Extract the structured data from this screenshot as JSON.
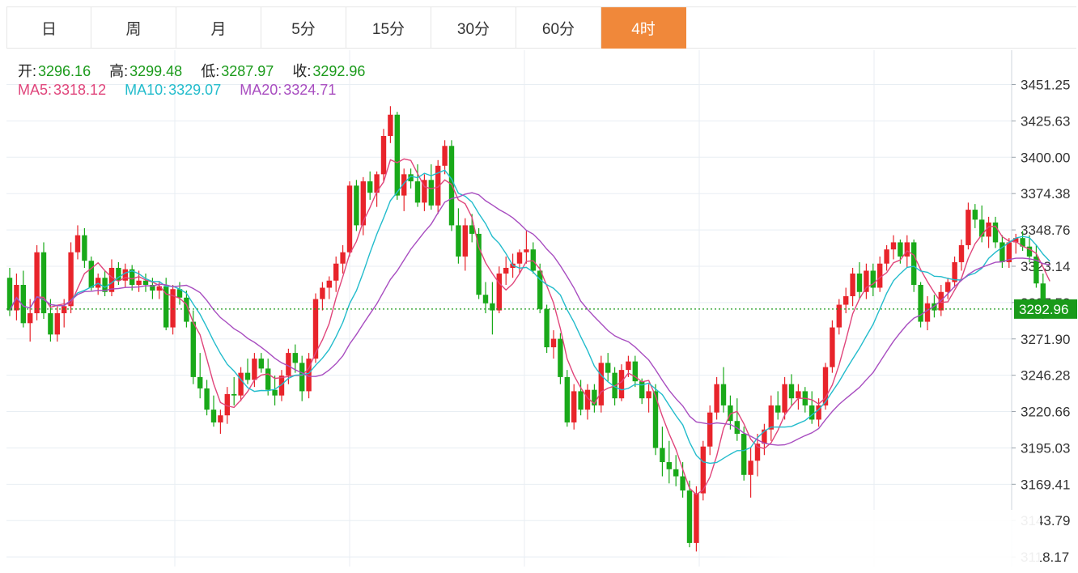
{
  "tabs": [
    {
      "label": "日",
      "active": false
    },
    {
      "label": "周",
      "active": false
    },
    {
      "label": "月",
      "active": false
    },
    {
      "label": "5分",
      "active": false
    },
    {
      "label": "15分",
      "active": false
    },
    {
      "label": "30分",
      "active": false
    },
    {
      "label": "60分",
      "active": false
    },
    {
      "label": "4时",
      "active": true
    }
  ],
  "ohlc": {
    "open_label": "开:",
    "open": "3296.16",
    "high_label": "高:",
    "high": "3299.48",
    "low_label": "低:",
    "low": "3287.97",
    "close_label": "收:",
    "close": "3292.96"
  },
  "ma": {
    "ma5_label": "MA5:",
    "ma5": "3318.12",
    "ma10_label": "MA10:",
    "ma10": "3329.07",
    "ma20_label": "MA20:",
    "ma20": "3324.71"
  },
  "colors": {
    "up": "#e8242b",
    "down": "#19a919",
    "ma5": "#e0457b",
    "ma10": "#23bccc",
    "ma20": "#a84dc0",
    "active_tab": "#f0883a",
    "last_price": "#1a9a1a",
    "grid": "#e8eef3"
  },
  "chart_data": {
    "type": "candlestick",
    "ylim": [
      3140,
      3470
    ],
    "y_ticks": [
      "3451.25",
      "3425.63",
      "3400.00",
      "3374.38",
      "3348.76",
      "3323.14",
      "3297.52",
      "3271.90",
      "3246.28",
      "3220.66",
      "3195.03",
      "3169.41",
      "3143.79",
      "3118.17"
    ],
    "last_price": "3292.96",
    "candles": [
      [
        3315,
        3322,
        3288,
        3292
      ],
      [
        3292,
        3318,
        3285,
        3310
      ],
      [
        3310,
        3320,
        3280,
        3283
      ],
      [
        3283,
        3300,
        3270,
        3290
      ],
      [
        3290,
        3338,
        3285,
        3333
      ],
      [
        3333,
        3340,
        3286,
        3290
      ],
      [
        3290,
        3300,
        3270,
        3275
      ],
      [
        3275,
        3295,
        3270,
        3290
      ],
      [
        3290,
        3300,
        3280,
        3295
      ],
      [
        3295,
        3340,
        3290,
        3333
      ],
      [
        3333,
        3352,
        3328,
        3345
      ],
      [
        3345,
        3350,
        3322,
        3327
      ],
      [
        3327,
        3330,
        3306,
        3308
      ],
      [
        3308,
        3318,
        3303,
        3315
      ],
      [
        3315,
        3320,
        3302,
        3305
      ],
      [
        3305,
        3328,
        3302,
        3322
      ],
      [
        3322,
        3326,
        3310,
        3313
      ],
      [
        3313,
        3325,
        3308,
        3321
      ],
      [
        3321,
        3324,
        3306,
        3310
      ],
      [
        3310,
        3320,
        3305,
        3313
      ],
      [
        3313,
        3318,
        3305,
        3310
      ],
      [
        3310,
        3315,
        3300,
        3306
      ],
      [
        3306,
        3312,
        3300,
        3309
      ],
      [
        3309,
        3315,
        3278,
        3280
      ],
      [
        3280,
        3310,
        3275,
        3307
      ],
      [
        3307,
        3312,
        3296,
        3301
      ],
      [
        3301,
        3306,
        3280,
        3284
      ],
      [
        3284,
        3292,
        3240,
        3245
      ],
      [
        3245,
        3262,
        3230,
        3237
      ],
      [
        3237,
        3243,
        3218,
        3222
      ],
      [
        3222,
        3232,
        3210,
        3213
      ],
      [
        3213,
        3222,
        3205,
        3218
      ],
      [
        3218,
        3238,
        3212,
        3233
      ],
      [
        3233,
        3245,
        3225,
        3232
      ],
      [
        3232,
        3252,
        3228,
        3248
      ],
      [
        3248,
        3258,
        3240,
        3243
      ],
      [
        3243,
        3262,
        3238,
        3258
      ],
      [
        3258,
        3262,
        3248,
        3251
      ],
      [
        3251,
        3258,
        3232,
        3236
      ],
      [
        3236,
        3246,
        3225,
        3232
      ],
      [
        3232,
        3250,
        3228,
        3246
      ],
      [
        3246,
        3265,
        3240,
        3262
      ],
      [
        3262,
        3268,
        3248,
        3255
      ],
      [
        3255,
        3260,
        3228,
        3235
      ],
      [
        3235,
        3262,
        3230,
        3258
      ],
      [
        3258,
        3304,
        3255,
        3300
      ],
      [
        3300,
        3312,
        3292,
        3308
      ],
      [
        3308,
        3316,
        3300,
        3313
      ],
      [
        3313,
        3330,
        3305,
        3325
      ],
      [
        3325,
        3338,
        3318,
        3333
      ],
      [
        3333,
        3383,
        3330,
        3380
      ],
      [
        3380,
        3384,
        3348,
        3352
      ],
      [
        3352,
        3386,
        3345,
        3383
      ],
      [
        3383,
        3390,
        3370,
        3375
      ],
      [
        3375,
        3390,
        3365,
        3388
      ],
      [
        3388,
        3420,
        3383,
        3415
      ],
      [
        3415,
        3436,
        3410,
        3430
      ],
      [
        3430,
        3432,
        3370,
        3373
      ],
      [
        3373,
        3392,
        3362,
        3388
      ],
      [
        3388,
        3392,
        3378,
        3383
      ],
      [
        3383,
        3395,
        3365,
        3368
      ],
      [
        3368,
        3388,
        3362,
        3384
      ],
      [
        3384,
        3395,
        3363,
        3366
      ],
      [
        3366,
        3398,
        3360,
        3394
      ],
      [
        3394,
        3412,
        3388,
        3408
      ],
      [
        3408,
        3412,
        3348,
        3352
      ],
      [
        3352,
        3364,
        3325,
        3330
      ],
      [
        3330,
        3357,
        3320,
        3352
      ],
      [
        3352,
        3360,
        3340,
        3346
      ],
      [
        3346,
        3350,
        3300,
        3303
      ],
      [
        3303,
        3312,
        3290,
        3297
      ],
      [
        3297,
        3312,
        3275,
        3292
      ],
      [
        3292,
        3323,
        3290,
        3318
      ],
      [
        3318,
        3330,
        3310,
        3322
      ],
      [
        3322,
        3332,
        3315,
        3325
      ],
      [
        3325,
        3335,
        3318,
        3333
      ],
      [
        3333,
        3348,
        3325,
        3335
      ],
      [
        3335,
        3340,
        3318,
        3320
      ],
      [
        3320,
        3325,
        3290,
        3293
      ],
      [
        3293,
        3296,
        3262,
        3266
      ],
      [
        3266,
        3278,
        3258,
        3272
      ],
      [
        3272,
        3276,
        3240,
        3245
      ],
      [
        3245,
        3250,
        3210,
        3213
      ],
      [
        3213,
        3240,
        3208,
        3235
      ],
      [
        3235,
        3243,
        3218,
        3222
      ],
      [
        3222,
        3240,
        3215,
        3236
      ],
      [
        3236,
        3240,
        3220,
        3225
      ],
      [
        3225,
        3260,
        3220,
        3255
      ],
      [
        3255,
        3262,
        3242,
        3248
      ],
      [
        3248,
        3252,
        3225,
        3230
      ],
      [
        3230,
        3254,
        3228,
        3250
      ],
      [
        3250,
        3260,
        3245,
        3256
      ],
      [
        3256,
        3260,
        3238,
        3242
      ],
      [
        3242,
        3244,
        3226,
        3230
      ],
      [
        3230,
        3240,
        3220,
        3235
      ],
      [
        3235,
        3240,
        3190,
        3195
      ],
      [
        3195,
        3210,
        3175,
        3185
      ],
      [
        3185,
        3200,
        3170,
        3180
      ],
      [
        3180,
        3190,
        3168,
        3175
      ],
      [
        3175,
        3185,
        3160,
        3165
      ],
      [
        3165,
        3172,
        3125,
        3128
      ],
      [
        3128,
        3168,
        3122,
        3163
      ],
      [
        3163,
        3200,
        3158,
        3196
      ],
      [
        3196,
        3225,
        3190,
        3220
      ],
      [
        3220,
        3245,
        3215,
        3240
      ],
      [
        3240,
        3252,
        3220,
        3225
      ],
      [
        3225,
        3232,
        3208,
        3214
      ],
      [
        3214,
        3230,
        3200,
        3205
      ],
      [
        3205,
        3210,
        3172,
        3176
      ],
      [
        3176,
        3195,
        3160,
        3186
      ],
      [
        3186,
        3205,
        3175,
        3198
      ],
      [
        3198,
        3212,
        3190,
        3208
      ],
      [
        3208,
        3232,
        3200,
        3225
      ],
      [
        3225,
        3235,
        3215,
        3220
      ],
      [
        3220,
        3245,
        3215,
        3240
      ],
      [
        3240,
        3247,
        3225,
        3230
      ],
      [
        3230,
        3240,
        3222,
        3235
      ],
      [
        3235,
        3238,
        3220,
        3225
      ],
      [
        3225,
        3235,
        3212,
        3215
      ],
      [
        3215,
        3230,
        3210,
        3225
      ],
      [
        3225,
        3255,
        3222,
        3252
      ],
      [
        3252,
        3285,
        3248,
        3280
      ],
      [
        3280,
        3300,
        3275,
        3296
      ],
      [
        3296,
        3308,
        3290,
        3302
      ],
      [
        3302,
        3322,
        3295,
        3318
      ],
      [
        3318,
        3326,
        3300,
        3305
      ],
      [
        3305,
        3325,
        3300,
        3320
      ],
      [
        3320,
        3325,
        3302,
        3308
      ],
      [
        3308,
        3330,
        3305,
        3325
      ],
      [
        3325,
        3338,
        3320,
        3335
      ],
      [
        3335,
        3345,
        3328,
        3340
      ],
      [
        3340,
        3342,
        3325,
        3330
      ],
      [
        3330,
        3345,
        3322,
        3340
      ],
      [
        3340,
        3342,
        3305,
        3310
      ],
      [
        3310,
        3312,
        3280,
        3284
      ],
      [
        3284,
        3302,
        3278,
        3297
      ],
      [
        3297,
        3303,
        3287,
        3292
      ],
      [
        3292,
        3310,
        3288,
        3305
      ],
      [
        3305,
        3315,
        3300,
        3312
      ],
      [
        3312,
        3330,
        3308,
        3326
      ],
      [
        3326,
        3342,
        3320,
        3338
      ],
      [
        3338,
        3368,
        3335,
        3363
      ],
      [
        3363,
        3367,
        3350,
        3356
      ],
      [
        3356,
        3366,
        3340,
        3344
      ],
      [
        3344,
        3358,
        3336,
        3354
      ],
      [
        3354,
        3358,
        3336,
        3340
      ],
      [
        3340,
        3345,
        3322,
        3326
      ],
      [
        3326,
        3343,
        3322,
        3340
      ],
      [
        3340,
        3346,
        3332,
        3343
      ],
      [
        3343,
        3348,
        3334,
        3337
      ],
      [
        3337,
        3345,
        3326,
        3330
      ],
      [
        3330,
        3338,
        3308,
        3311
      ],
      [
        3311,
        3318,
        3286,
        3292
      ],
      [
        3296.16,
        3299.48,
        3287.97,
        3292.96
      ]
    ]
  }
}
